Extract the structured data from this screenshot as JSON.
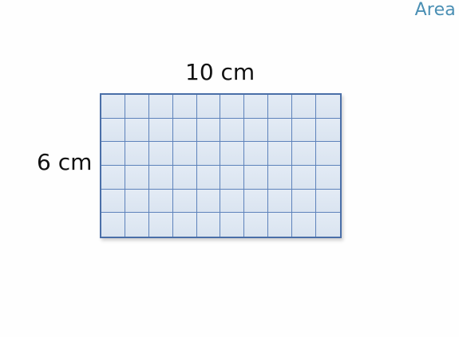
{
  "slide": {
    "title": "Area",
    "title_color": "#4a8fb4"
  },
  "rectangle": {
    "width_label": "10 cm",
    "height_label": "6 cm",
    "columns": 10,
    "rows": 6,
    "fill_color": "#dfe8f3",
    "line_color": "#4a6fa8"
  }
}
